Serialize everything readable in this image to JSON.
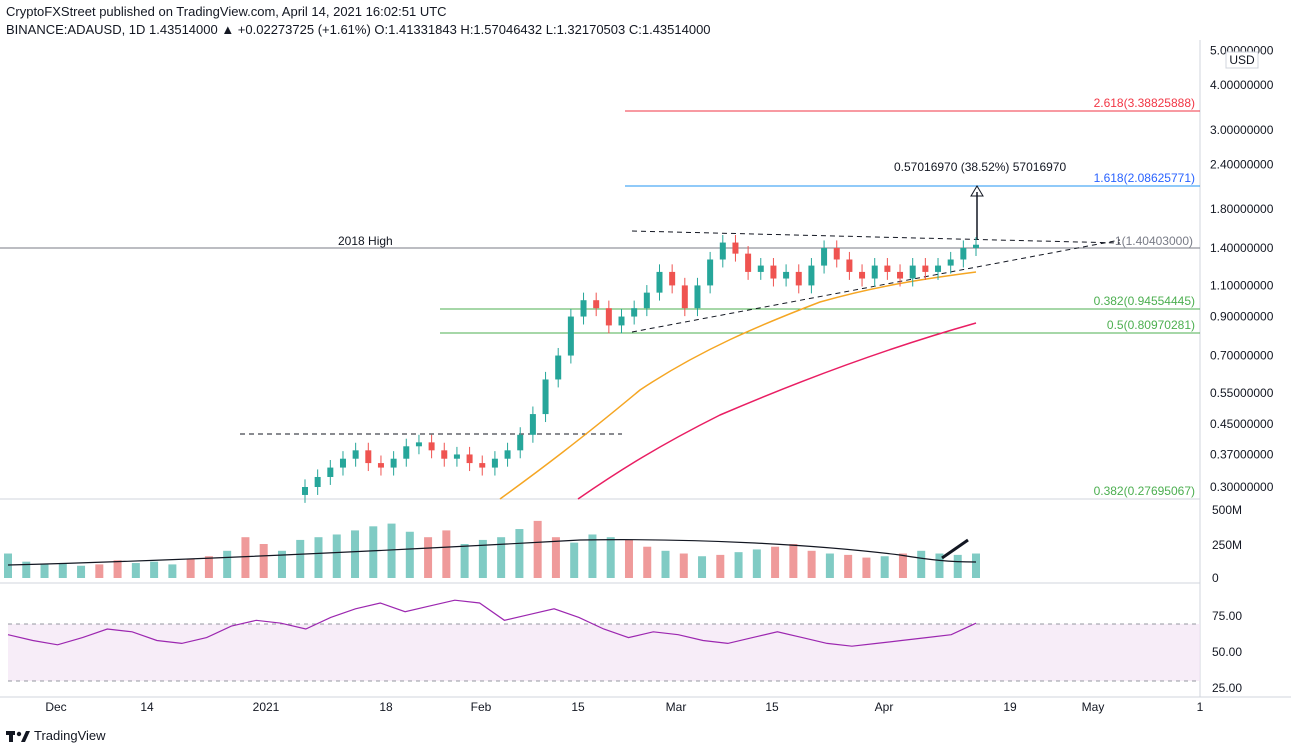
{
  "header": {
    "line1": "CryptoFXStreet published on TradingView.com, April 14, 2021 16:02:51 UTC",
    "line2": "BINANCE:ADAUSD, 1D  1.43514000  ▲ +0.02273725 (+1.61%)  O:1.41331843  H:1.57046432  L:1.32170503  C:1.43514000"
  },
  "footer": {
    "brand": "TradingView"
  },
  "colors": {
    "up": "#26a69a",
    "down": "#ef5350",
    "sma50": "#f5a623",
    "sma200": "#e91e63",
    "fib_red": "#f23645",
    "fib_blue": "#2962ff",
    "fib_green": "#4caf50",
    "rsi": "#9c27b0"
  },
  "chart_data": {
    "type": "candlestick",
    "symbol": "BINANCE:ADAUSD",
    "timeframe": "1D",
    "currency_label": "USD",
    "price_axis": {
      "scale": "log",
      "ticks": [
        "5.00000000",
        "4.00000000",
        "3.00000000",
        "2.40000000",
        "1.80000000",
        "1.40000000",
        "1.10000000",
        "0.90000000",
        "0.70000000",
        "0.55000000",
        "0.45000000",
        "0.37000000",
        "0.30000000"
      ]
    },
    "time_axis": {
      "ticks": [
        "Dec",
        "14",
        "2021",
        "18",
        "Feb",
        "15",
        "Mar",
        "15",
        "Apr",
        "19",
        "May",
        "1"
      ]
    },
    "annotations": {
      "high_2018": {
        "label": "2018 High",
        "value": 1.404
      },
      "fib_levels": [
        {
          "ratio": "2.618",
          "value": "3.38825888",
          "label": "2.618(3.38825888)"
        },
        {
          "ratio": "1.618",
          "value": "2.08625771",
          "label": "1.618(2.08625771)"
        },
        {
          "ratio": "1",
          "value": "1.40403000",
          "label": "1(1.40403000)"
        },
        {
          "ratio": "0.382",
          "value": "0.94554445",
          "label": "0.382(0.94554445)"
        },
        {
          "ratio": "0.5",
          "value": "0.80970281",
          "label": "0.5(0.80970281)"
        },
        {
          "ratio": "0.382",
          "value": "0.27695067",
          "label": "0.382(0.27695067)"
        }
      ],
      "measure": "0.57016970 (38.52%) 57016970"
    },
    "volume_axis": {
      "ticks": [
        "500M",
        "250M",
        "0"
      ]
    },
    "rsi_axis": {
      "ticks": [
        "75.00",
        "50.00",
        "25.00"
      ],
      "band": [
        30,
        70
      ]
    },
    "approx_closes": [
      0.3,
      0.32,
      0.34,
      0.36,
      0.38,
      0.35,
      0.34,
      0.36,
      0.39,
      0.4,
      0.38,
      0.36,
      0.37,
      0.35,
      0.34,
      0.36,
      0.38,
      0.42,
      0.48,
      0.6,
      0.7,
      0.9,
      1.0,
      0.95,
      0.85,
      0.9,
      0.95,
      1.05,
      1.2,
      1.1,
      0.95,
      1.1,
      1.3,
      1.45,
      1.35,
      1.2,
      1.25,
      1.15,
      1.2,
      1.1,
      1.25,
      1.4,
      1.3,
      1.2,
      1.15,
      1.25,
      1.2,
      1.15,
      1.25,
      1.2,
      1.25,
      1.3,
      1.4,
      1.43
    ],
    "approx_volume_m": [
      180,
      120,
      100,
      110,
      90,
      100,
      130,
      110,
      120,
      100,
      140,
      160,
      200,
      300,
      250,
      200,
      280,
      300,
      320,
      350,
      380,
      400,
      340,
      300,
      350,
      250,
      280,
      300,
      360,
      420,
      300,
      260,
      320,
      300,
      280,
      230,
      200,
      180,
      160,
      170,
      190,
      210,
      230,
      250,
      200,
      180,
      170,
      150,
      160,
      180,
      200,
      180,
      170,
      180
    ],
    "approx_rsi": [
      62,
      58,
      55,
      60,
      66,
      64,
      58,
      56,
      60,
      68,
      72,
      70,
      66,
      74,
      80,
      84,
      78,
      82,
      86,
      84,
      72,
      76,
      80,
      74,
      66,
      60,
      64,
      62,
      58,
      56,
      60,
      64,
      60,
      56,
      54,
      56,
      58,
      60,
      62,
      70
    ]
  }
}
